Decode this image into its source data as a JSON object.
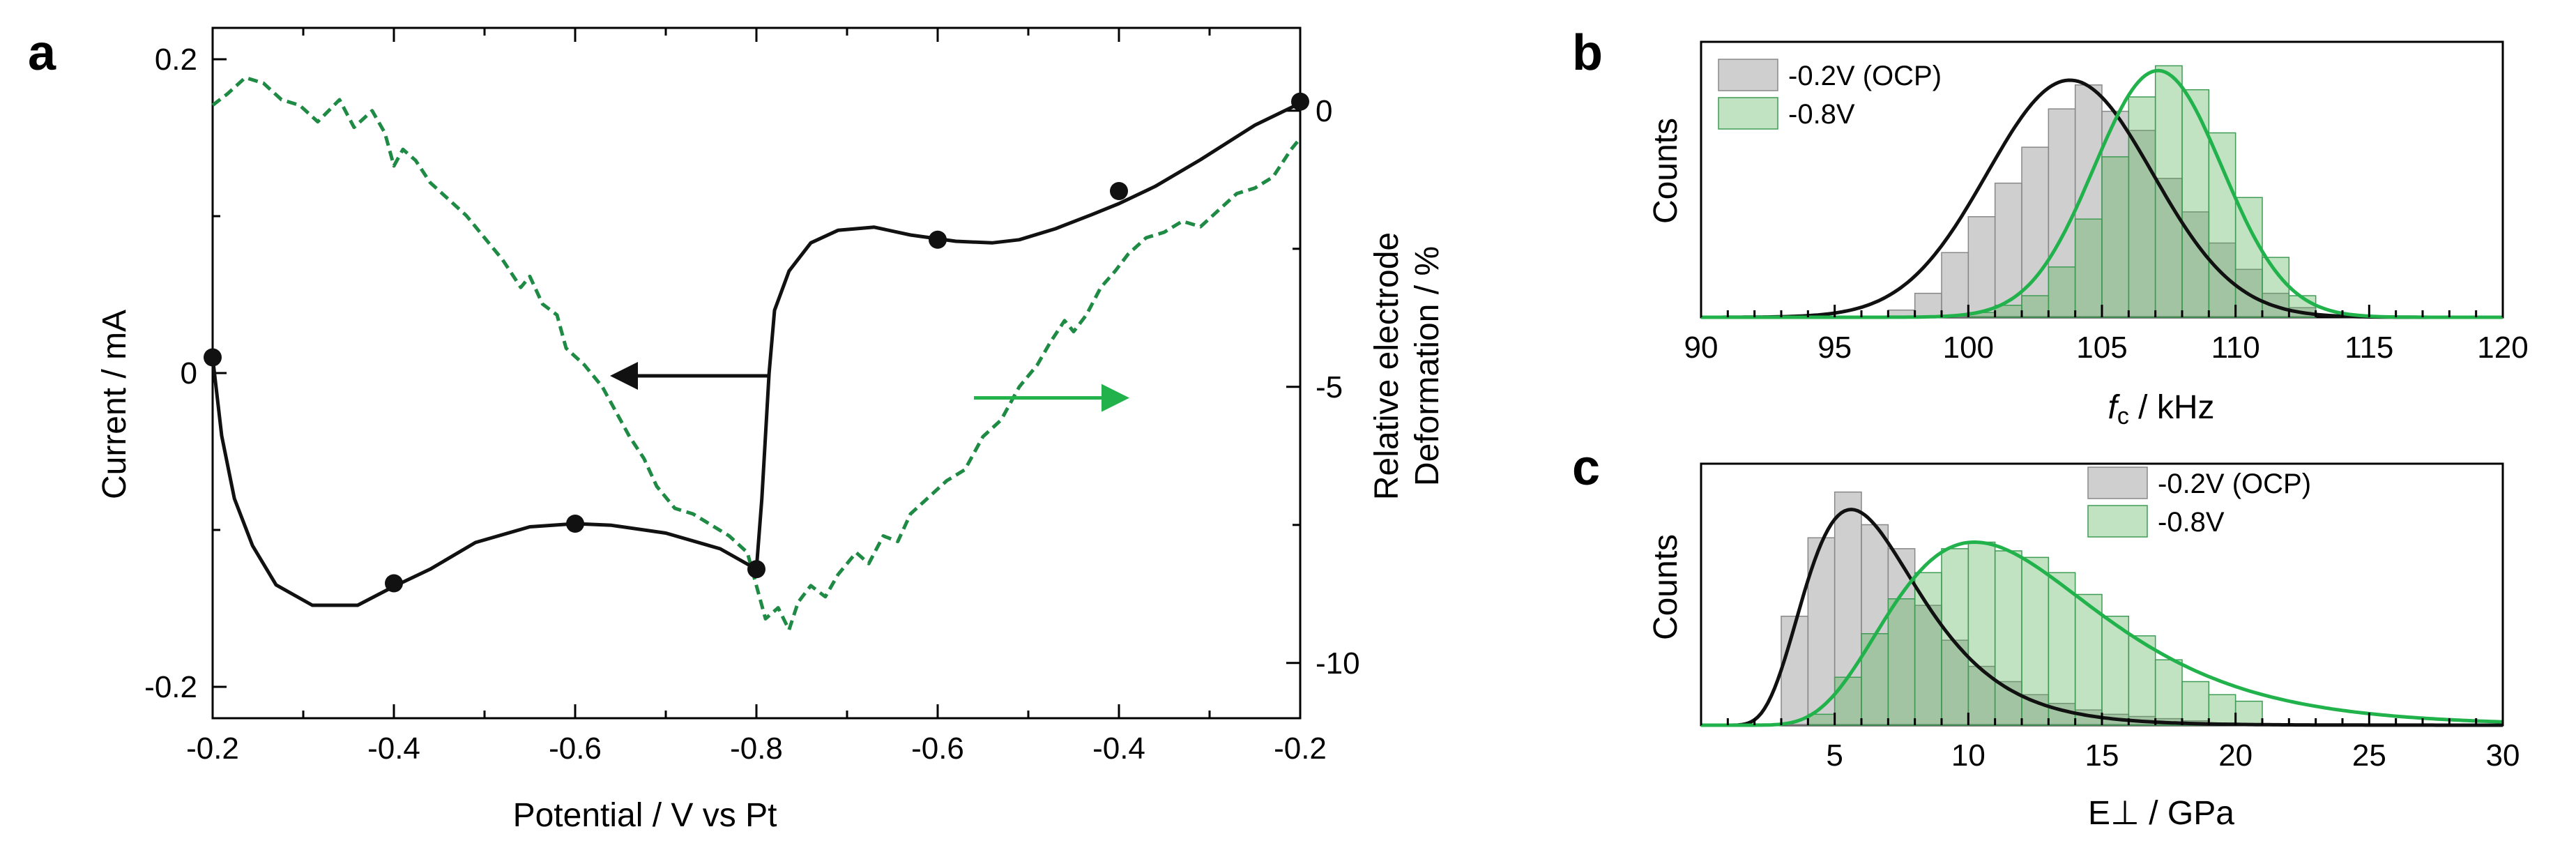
{
  "colors": {
    "cv_line": "#111111",
    "deformation_line": "#1e8a44",
    "green_fit": "#22b24c",
    "green_bar_fill": "#4caf50",
    "gray_bar_fill": "#a8a8a8",
    "arrow_black": "#111111",
    "arrow_green": "#22b24c"
  },
  "chart_data": [
    {
      "panel": "a",
      "type": "line",
      "xlabel": "Potential / V vs Pt",
      "ylabel": "Current / mA",
      "y2label_line1": "Relative electrode",
      "y2label_line2": "Deformation / %",
      "x_tick_labels": [
        "-0.2",
        "-0.4",
        "-0.6",
        "-0.8",
        "-0.6",
        "-0.4",
        "-0.2"
      ],
      "x_sweep_position_range": [
        0,
        6
      ],
      "ylim": [
        -0.22,
        0.22
      ],
      "y_ticks": [
        -0.2,
        0,
        0.2
      ],
      "y_tick_labels": [
        "-0.2",
        "0",
        "0.2"
      ],
      "y2lim": [
        -11,
        1.5
      ],
      "y2_ticks": [
        -10,
        -5,
        0
      ],
      "y2_tick_labels": [
        "-10",
        "-5",
        "0"
      ],
      "series": [
        {
          "name": "Current",
          "axis": "left",
          "style": "solid",
          "points": [
            [
              0,
              0.01
            ],
            [
              0.05,
              -0.04
            ],
            [
              0.12,
              -0.08
            ],
            [
              0.22,
              -0.11
            ],
            [
              0.35,
              -0.135
            ],
            [
              0.55,
              -0.148
            ],
            [
              0.8,
              -0.148
            ],
            [
              1.0,
              -0.136
            ],
            [
              1.2,
              -0.125
            ],
            [
              1.45,
              -0.108
            ],
            [
              1.75,
              -0.098
            ],
            [
              2.0,
              -0.096
            ],
            [
              2.2,
              -0.097
            ],
            [
              2.5,
              -0.102
            ],
            [
              2.8,
              -0.112
            ],
            [
              3.0,
              -0.125
            ],
            [
              3.03,
              -0.08
            ],
            [
              3.07,
              0.0
            ],
            [
              3.1,
              0.04
            ],
            [
              3.18,
              0.065
            ],
            [
              3.3,
              0.083
            ],
            [
              3.45,
              0.091
            ],
            [
              3.65,
              0.093
            ],
            [
              3.85,
              0.088
            ],
            [
              4.1,
              0.084
            ],
            [
              4.3,
              0.083
            ],
            [
              4.45,
              0.085
            ],
            [
              4.65,
              0.092
            ],
            [
              4.85,
              0.101
            ],
            [
              5.0,
              0.108
            ],
            [
              5.2,
              0.119
            ],
            [
              5.45,
              0.136
            ],
            [
              5.75,
              0.158
            ],
            [
              6.0,
              0.172
            ]
          ],
          "markers": [
            [
              0,
              0.01
            ],
            [
              1.0,
              -0.134
            ],
            [
              2.0,
              -0.096
            ],
            [
              3.0,
              -0.125
            ],
            [
              4.0,
              0.085
            ],
            [
              5.0,
              0.116
            ],
            [
              6.0,
              0.173
            ]
          ]
        },
        {
          "name": "Relative electrode Deformation",
          "axis": "right",
          "style": "dashed",
          "points": [
            [
              0,
              0.1
            ],
            [
              0.08,
              0.3
            ],
            [
              0.18,
              0.6
            ],
            [
              0.28,
              0.5
            ],
            [
              0.38,
              0.2
            ],
            [
              0.48,
              0.1
            ],
            [
              0.58,
              -0.2
            ],
            [
              0.7,
              0.2
            ],
            [
              0.78,
              -0.3
            ],
            [
              0.88,
              0.0
            ],
            [
              0.95,
              -0.4
            ],
            [
              1.0,
              -1.0
            ],
            [
              1.05,
              -0.7
            ],
            [
              1.12,
              -0.9
            ],
            [
              1.2,
              -1.3
            ],
            [
              1.3,
              -1.6
            ],
            [
              1.4,
              -1.9
            ],
            [
              1.5,
              -2.3
            ],
            [
              1.6,
              -2.7
            ],
            [
              1.7,
              -3.2
            ],
            [
              1.75,
              -3.0
            ],
            [
              1.82,
              -3.5
            ],
            [
              1.9,
              -3.7
            ],
            [
              1.95,
              -4.3
            ],
            [
              2.05,
              -4.6
            ],
            [
              2.15,
              -5.0
            ],
            [
              2.2,
              -5.3
            ],
            [
              2.3,
              -5.9
            ],
            [
              2.38,
              -6.3
            ],
            [
              2.45,
              -6.8
            ],
            [
              2.55,
              -7.2
            ],
            [
              2.65,
              -7.3
            ],
            [
              2.75,
              -7.5
            ],
            [
              2.85,
              -7.7
            ],
            [
              2.95,
              -8.0
            ],
            [
              3.0,
              -8.6
            ],
            [
              3.05,
              -9.2
            ],
            [
              3.12,
              -9.0
            ],
            [
              3.18,
              -9.4
            ],
            [
              3.23,
              -8.9
            ],
            [
              3.3,
              -8.6
            ],
            [
              3.38,
              -8.8
            ],
            [
              3.45,
              -8.4
            ],
            [
              3.55,
              -8.0
            ],
            [
              3.62,
              -8.2
            ],
            [
              3.7,
              -7.7
            ],
            [
              3.78,
              -7.8
            ],
            [
              3.85,
              -7.3
            ],
            [
              3.95,
              -7.0
            ],
            [
              4.05,
              -6.7
            ],
            [
              4.15,
              -6.5
            ],
            [
              4.25,
              -5.9
            ],
            [
              4.35,
              -5.6
            ],
            [
              4.45,
              -5.0
            ],
            [
              4.55,
              -4.6
            ],
            [
              4.62,
              -4.2
            ],
            [
              4.7,
              -3.8
            ],
            [
              4.75,
              -4.0
            ],
            [
              4.82,
              -3.7
            ],
            [
              4.9,
              -3.2
            ],
            [
              4.98,
              -2.9
            ],
            [
              5.05,
              -2.6
            ],
            [
              5.15,
              -2.3
            ],
            [
              5.25,
              -2.2
            ],
            [
              5.35,
              -2.0
            ],
            [
              5.45,
              -2.1
            ],
            [
              5.55,
              -1.8
            ],
            [
              5.65,
              -1.5
            ],
            [
              5.75,
              -1.4
            ],
            [
              5.85,
              -1.2
            ],
            [
              5.95,
              -0.7
            ],
            [
              6.0,
              -0.5
            ]
          ]
        }
      ],
      "arrows": [
        {
          "direction": "left",
          "color_key": "arrow_black",
          "at_x": [
            3.07,
            2.25
          ],
          "at_y2": -4.8
        },
        {
          "direction": "right",
          "color_key": "arrow_green",
          "at_x": [
            4.2,
            5.0
          ],
          "at_y2": -5.2
        }
      ]
    },
    {
      "panel": "b",
      "type": "histogram",
      "xlabel_italic": "f",
      "xlabel_sub": "c",
      "xlabel_rest": " / kHz",
      "ylabel": "Counts",
      "xlim": [
        90,
        120
      ],
      "x_ticks": [
        90,
        95,
        100,
        105,
        110,
        115,
        120
      ],
      "x_tick_labels": [
        "90",
        "95",
        "100",
        "105",
        "110",
        "115",
        "120"
      ],
      "ylim": [
        0,
        1.15
      ],
      "bin_width": 1,
      "legend_position": "top-left",
      "series": [
        {
          "name": "-0.2V (OCP)",
          "color_key": "gray_bar_fill",
          "bin_starts": [
            97,
            98,
            99,
            100,
            101,
            102,
            103,
            104,
            105,
            106,
            107,
            108,
            109,
            110,
            111,
            112
          ],
          "values": [
            0.03,
            0.1,
            0.27,
            0.42,
            0.56,
            0.71,
            0.87,
            0.97,
            0.86,
            0.78,
            0.58,
            0.44,
            0.31,
            0.2,
            0.1,
            0.04
          ],
          "fit_mu": 103.8,
          "fit_sigma": 3.1,
          "fit_amp": 0.99
        },
        {
          "name": "-0.8V",
          "color_key": "green_bar_fill",
          "bin_starts": [
            100,
            101,
            102,
            103,
            104,
            105,
            106,
            107,
            108,
            109,
            110,
            111,
            112
          ],
          "values": [
            0.02,
            0.05,
            0.09,
            0.21,
            0.41,
            0.67,
            0.92,
            1.05,
            0.95,
            0.77,
            0.5,
            0.25,
            0.09
          ],
          "fit_mu": 107.1,
          "fit_sigma": 2.4,
          "fit_amp": 1.03
        }
      ]
    },
    {
      "panel": "c",
      "type": "histogram",
      "xlabel": "E⊥ / GPa",
      "ylabel": "Counts",
      "xlim": [
        0,
        30
      ],
      "x_ticks": [
        5,
        10,
        15,
        20,
        25,
        30
      ],
      "x_tick_labels": [
        "5",
        "10",
        "15",
        "20",
        "25",
        "30"
      ],
      "ylim": [
        0,
        1.2
      ],
      "bin_width": 1,
      "legend_position": "top-right",
      "series": [
        {
          "name": "-0.2V (OCP)",
          "color_key": "gray_bar_fill",
          "bin_starts": [
            3,
            4,
            5,
            6,
            7,
            8,
            9,
            10,
            11,
            12,
            13,
            14,
            15,
            16,
            17,
            18,
            19
          ],
          "values": [
            0.5,
            0.86,
            1.07,
            0.92,
            0.81,
            0.55,
            0.39,
            0.27,
            0.2,
            0.14,
            0.1,
            0.07,
            0.05,
            0.04,
            0.03,
            0.02,
            0.01
          ],
          "fit_mu_log": 1.87,
          "fit_sigma_log": 0.38,
          "fit_amp": 0.99
        },
        {
          "name": "-0.8V",
          "color_key": "green_bar_fill",
          "bin_starts": [
            4,
            5,
            6,
            7,
            8,
            9,
            10,
            11,
            12,
            13,
            14,
            15,
            16,
            17,
            18,
            19,
            20
          ],
          "values": [
            0.05,
            0.22,
            0.42,
            0.58,
            0.7,
            0.81,
            0.84,
            0.8,
            0.77,
            0.7,
            0.6,
            0.5,
            0.41,
            0.3,
            0.2,
            0.14,
            0.11
          ],
          "fit_mu_log": 2.47,
          "fit_sigma_log": 0.38,
          "fit_amp": 0.84
        }
      ]
    }
  ],
  "panels": {
    "a": {
      "letter": "a"
    },
    "b": {
      "letter": "b"
    },
    "c": {
      "letter": "c"
    }
  }
}
